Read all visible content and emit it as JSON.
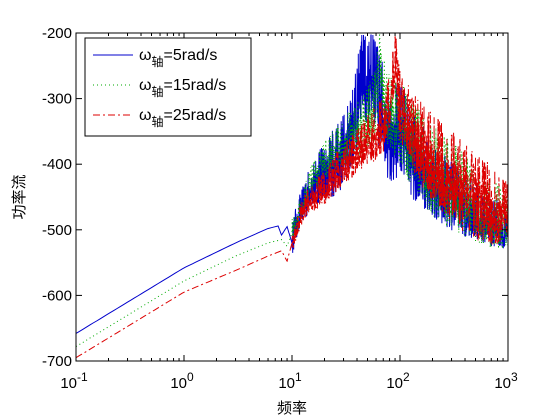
{
  "chart_data": {
    "type": "line",
    "xscale": "log",
    "xlim": [
      0.1,
      1000
    ],
    "ylim": [
      -700,
      -200
    ],
    "xlabel": "频率",
    "ylabel": "功率流",
    "xticks": [
      {
        "value": 0.1,
        "base": "10",
        "exp": "-1"
      },
      {
        "value": 1,
        "base": "10",
        "exp": "0"
      },
      {
        "value": 10,
        "base": "10",
        "exp": "1"
      },
      {
        "value": 100,
        "base": "10",
        "exp": "2"
      },
      {
        "value": 1000,
        "base": "10",
        "exp": "3"
      }
    ],
    "yticks": [
      -200,
      -300,
      -400,
      -500,
      -600,
      -700
    ],
    "legend_position": "top-left",
    "series": [
      {
        "legend_main": "ω",
        "legend_sub": "轴",
        "legend_rest": "=5rad/s",
        "color": "#0000cc",
        "dash": "solid",
        "points": [
          [
            0.1,
            -658
          ],
          [
            1,
            -558
          ],
          [
            3,
            -520
          ],
          [
            6,
            -498
          ],
          [
            7.5,
            -494
          ],
          [
            8,
            -508
          ],
          [
            9,
            -495
          ],
          [
            10,
            -520
          ],
          [
            11,
            -492
          ],
          [
            13,
            -460
          ],
          [
            15,
            -440
          ],
          [
            18,
            -425
          ],
          [
            22,
            -415
          ],
          [
            25,
            -402
          ],
          [
            30,
            -390
          ],
          [
            35,
            -360
          ],
          [
            40,
            -320
          ],
          [
            45,
            -260
          ],
          [
            50,
            -300
          ],
          [
            55,
            -250
          ],
          [
            60,
            -300
          ],
          [
            70,
            -330
          ],
          [
            80,
            -380
          ],
          [
            100,
            -350
          ],
          [
            130,
            -400
          ],
          [
            160,
            -410
          ],
          [
            200,
            -430
          ],
          [
            300,
            -460
          ],
          [
            500,
            -480
          ],
          [
            1000,
            -505
          ]
        ],
        "seed": 11,
        "noise": [
          [
            10,
            20
          ],
          [
            25,
            45
          ],
          [
            60,
            65
          ],
          [
            150,
            55
          ],
          [
            400,
            40
          ],
          [
            1000,
            25
          ]
        ]
      },
      {
        "legend_main": "ω",
        "legend_sub": "轴",
        "legend_rest": "=15rad/s",
        "color": "#00aa00",
        "dash": "1 3",
        "points": [
          [
            0.1,
            -678
          ],
          [
            1,
            -578
          ],
          [
            3,
            -540
          ],
          [
            6,
            -520
          ],
          [
            8,
            -515
          ],
          [
            9,
            -525
          ],
          [
            10,
            -505
          ],
          [
            11,
            -490
          ],
          [
            13,
            -460
          ],
          [
            15,
            -430
          ],
          [
            20,
            -400
          ],
          [
            25,
            -385
          ],
          [
            30,
            -375
          ],
          [
            40,
            -355
          ],
          [
            50,
            -345
          ],
          [
            60,
            -320
          ],
          [
            65,
            -245
          ],
          [
            70,
            -300
          ],
          [
            80,
            -330
          ],
          [
            100,
            -350
          ],
          [
            130,
            -380
          ],
          [
            160,
            -400
          ],
          [
            200,
            -420
          ],
          [
            300,
            -445
          ],
          [
            500,
            -470
          ],
          [
            1000,
            -495
          ]
        ],
        "seed": 23,
        "noise": [
          [
            10,
            15
          ],
          [
            25,
            30
          ],
          [
            60,
            50
          ],
          [
            150,
            60
          ],
          [
            400,
            55
          ],
          [
            1000,
            35
          ]
        ]
      },
      {
        "legend_main": "ω",
        "legend_sub": "轴",
        "legend_rest": "=25rad/s",
        "color": "#dd0000",
        "dash": "7 3 2 3",
        "points": [
          [
            0.1,
            -695
          ],
          [
            1,
            -595
          ],
          [
            3,
            -562
          ],
          [
            6,
            -540
          ],
          [
            8,
            -532
          ],
          [
            9,
            -548
          ],
          [
            10,
            -520
          ],
          [
            11,
            -500
          ],
          [
            13,
            -470
          ],
          [
            15,
            -455
          ],
          [
            20,
            -440
          ],
          [
            25,
            -420
          ],
          [
            30,
            -405
          ],
          [
            40,
            -385
          ],
          [
            50,
            -370
          ],
          [
            60,
            -360
          ],
          [
            70,
            -345
          ],
          [
            80,
            -320
          ],
          [
            90,
            -245
          ],
          [
            100,
            -320
          ],
          [
            130,
            -360
          ],
          [
            160,
            -380
          ],
          [
            200,
            -400
          ],
          [
            300,
            -430
          ],
          [
            500,
            -460
          ],
          [
            1000,
            -485
          ]
        ],
        "seed": 37,
        "noise": [
          [
            10,
            15
          ],
          [
            25,
            25
          ],
          [
            60,
            35
          ],
          [
            150,
            55
          ],
          [
            400,
            60
          ],
          [
            1000,
            40
          ]
        ]
      }
    ]
  }
}
